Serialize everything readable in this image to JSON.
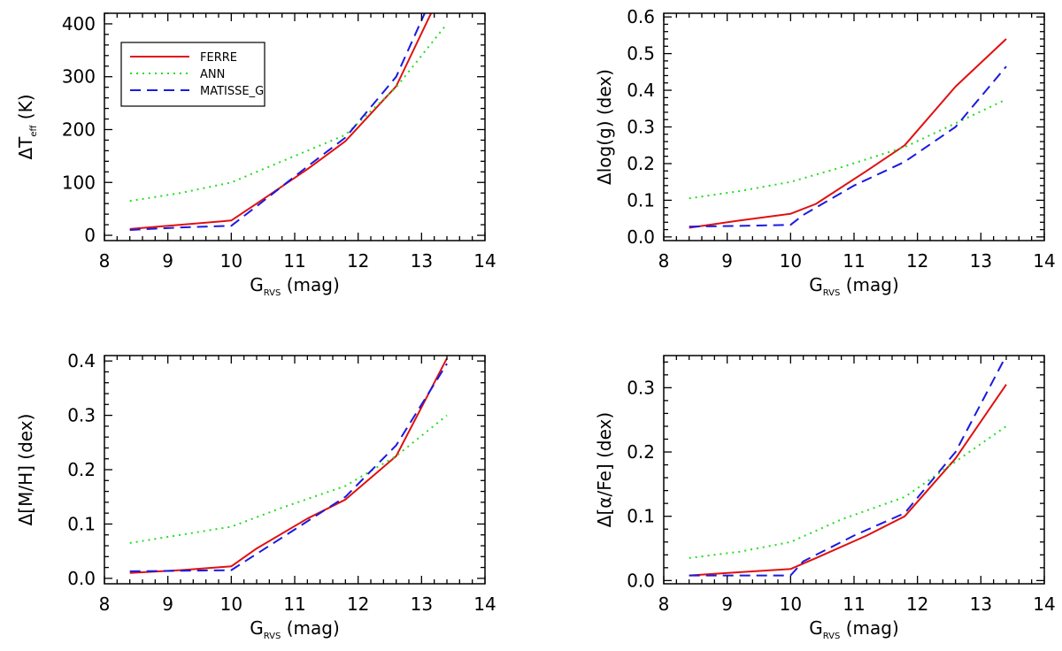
{
  "series_styles": [
    {
      "name": "FERRE",
      "color": "#e01010",
      "dash": "none"
    },
    {
      "name": "ANN",
      "color": "#22dd22",
      "dash": "2 5"
    },
    {
      "name": "MATISSE_G",
      "color": "#1a1ae0",
      "dash": "12 7"
    }
  ],
  "chart_data": [
    {
      "type": "line",
      "xlabel": "G",
      "xlabel_sub": "RVS",
      "xlabel_unit": " (mag)",
      "ylabel": "ΔT",
      "ylabel_sub": "eff",
      "ylabel_unit": " (K)",
      "xlim": [
        8,
        14
      ],
      "ylim": [
        -10,
        420
      ],
      "xticks": [
        8,
        9,
        10,
        11,
        12,
        13,
        14
      ],
      "yticks": [
        0,
        100,
        200,
        300,
        400
      ],
      "ytick_labels": [
        "0",
        "100",
        "200",
        "300",
        "400"
      ],
      "legend": "top-left",
      "series": [
        {
          "name": "FERRE",
          "x": [
            8.4,
            9.2,
            10.0,
            10.4,
            11.2,
            11.8,
            12.6,
            13.15
          ],
          "y": [
            12,
            20,
            28,
            60,
            125,
            178,
            282,
            420
          ]
        },
        {
          "name": "ANN",
          "x": [
            8.4,
            9.2,
            10.0,
            10.8,
            11.8,
            12.6,
            13.4
          ],
          "y": [
            65,
            80,
            100,
            140,
            190,
            280,
            400
          ]
        },
        {
          "name": "MATISSE_G",
          "x": [
            8.4,
            9.2,
            10.0,
            10.4,
            11.2,
            11.8,
            12.6,
            13.05
          ],
          "y": [
            10,
            15,
            18,
            55,
            130,
            185,
            300,
            420
          ]
        }
      ]
    },
    {
      "type": "line",
      "xlabel": "G",
      "xlabel_sub": "RVS",
      "xlabel_unit": " (mag)",
      "ylabel": "Δlog(g) (dex)",
      "ylabel_sub": "",
      "ylabel_unit": "",
      "xlim": [
        8,
        14
      ],
      "ylim": [
        -0.01,
        0.61
      ],
      "xticks": [
        8,
        9,
        10,
        11,
        12,
        13,
        14
      ],
      "yticks": [
        0.0,
        0.1,
        0.2,
        0.3,
        0.4,
        0.5,
        0.6
      ],
      "ytick_labels": [
        "0.0",
        "0.1",
        "0.2",
        "0.3",
        "0.4",
        "0.5",
        "0.6"
      ],
      "series": [
        {
          "name": "FERRE",
          "x": [
            8.4,
            9.2,
            10.0,
            10.4,
            11.2,
            11.8,
            12.6,
            13.4
          ],
          "y": [
            0.025,
            0.045,
            0.063,
            0.09,
            0.18,
            0.25,
            0.41,
            0.54
          ]
        },
        {
          "name": "ANN",
          "x": [
            8.4,
            9.2,
            10.0,
            10.8,
            11.8,
            12.6,
            13.4
          ],
          "y": [
            0.105,
            0.125,
            0.15,
            0.19,
            0.245,
            0.31,
            0.375
          ]
        },
        {
          "name": "MATISSE_G",
          "x": [
            8.4,
            9.2,
            10.0,
            10.2,
            11.0,
            11.8,
            12.6,
            13.4
          ],
          "y": [
            0.028,
            0.03,
            0.033,
            0.06,
            0.14,
            0.205,
            0.3,
            0.465
          ]
        }
      ]
    },
    {
      "type": "line",
      "xlabel": "G",
      "xlabel_sub": "RVS",
      "xlabel_unit": " (mag)",
      "ylabel": "Δ[M/H] (dex)",
      "ylabel_sub": "",
      "ylabel_unit": "",
      "xlim": [
        8,
        14
      ],
      "ylim": [
        -0.01,
        0.41
      ],
      "xticks": [
        8,
        9,
        10,
        11,
        12,
        13,
        14
      ],
      "yticks": [
        0.0,
        0.1,
        0.2,
        0.3,
        0.4
      ],
      "ytick_labels": [
        "0.0",
        "0.1",
        "0.2",
        "0.3",
        "0.4"
      ],
      "series": [
        {
          "name": "FERRE",
          "x": [
            8.4,
            9.2,
            10.0,
            10.4,
            11.2,
            11.8,
            12.6,
            13.4
          ],
          "y": [
            0.01,
            0.015,
            0.022,
            0.055,
            0.11,
            0.145,
            0.225,
            0.405
          ]
        },
        {
          "name": "ANN",
          "x": [
            8.4,
            9.2,
            10.0,
            10.8,
            11.8,
            12.6,
            13.4
          ],
          "y": [
            0.065,
            0.08,
            0.095,
            0.13,
            0.17,
            0.225,
            0.3
          ]
        },
        {
          "name": "MATISSE_G",
          "x": [
            8.4,
            9.2,
            10.0,
            10.2,
            11.0,
            11.8,
            12.6,
            13.4
          ],
          "y": [
            0.013,
            0.014,
            0.015,
            0.03,
            0.09,
            0.15,
            0.245,
            0.395
          ]
        }
      ]
    },
    {
      "type": "line",
      "xlabel": "G",
      "xlabel_sub": "RVS",
      "xlabel_unit": " (mag)",
      "ylabel": "Δ[α/Fe] (dex)",
      "ylabel_sub": "",
      "ylabel_unit": "",
      "xlim": [
        8,
        14
      ],
      "ylim": [
        -0.005,
        0.35
      ],
      "xticks": [
        8,
        9,
        10,
        11,
        12,
        13,
        14
      ],
      "yticks": [
        0.0,
        0.1,
        0.2,
        0.3
      ],
      "ytick_labels": [
        "0.0",
        "0.1",
        "0.2",
        "0.3"
      ],
      "series": [
        {
          "name": "FERRE",
          "x": [
            8.4,
            9.2,
            10.0,
            10.4,
            11.2,
            11.8,
            12.6,
            13.4
          ],
          "y": [
            0.008,
            0.013,
            0.018,
            0.035,
            0.07,
            0.1,
            0.19,
            0.305
          ]
        },
        {
          "name": "ANN",
          "x": [
            8.4,
            9.2,
            10.0,
            10.8,
            11.8,
            12.6,
            13.4
          ],
          "y": [
            0.035,
            0.045,
            0.06,
            0.095,
            0.13,
            0.185,
            0.24
          ]
        },
        {
          "name": "MATISSE_G",
          "x": [
            8.4,
            9.2,
            10.0,
            10.2,
            11.0,
            11.8,
            12.6,
            13.4
          ],
          "y": [
            0.008,
            0.008,
            0.008,
            0.03,
            0.07,
            0.105,
            0.2,
            0.35
          ]
        }
      ]
    }
  ]
}
